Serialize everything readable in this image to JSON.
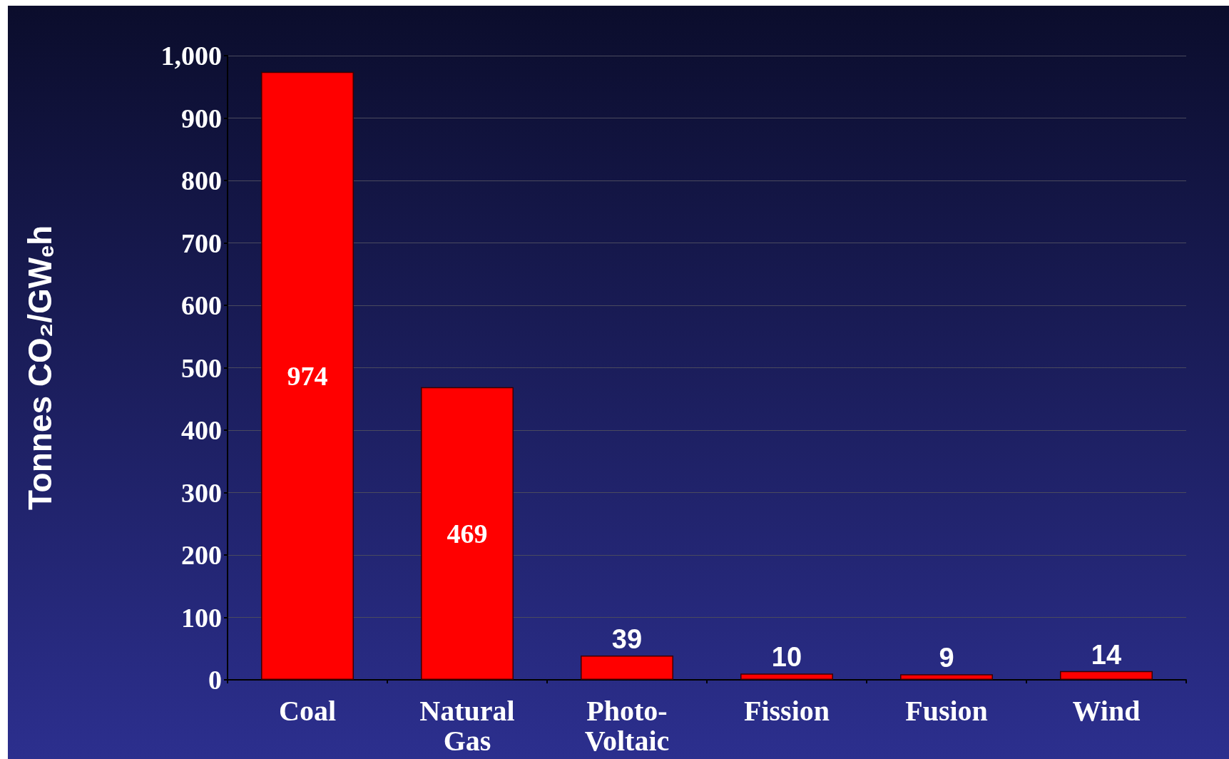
{
  "chart_data": {
    "type": "bar",
    "ylabel": "Tonnes CO₂/GW$_{e}$h",
    "categories": [
      "Coal",
      "Natural Gas",
      "Photo-Voltaic",
      "Fission",
      "Fusion",
      "Wind"
    ],
    "values": [
      974,
      469,
      39,
      10,
      9,
      14
    ],
    "color": "#ff0000",
    "ylim": [
      0,
      1000
    ],
    "yticks": [
      0,
      100,
      200,
      300,
      400,
      500,
      600,
      700,
      800,
      900,
      {
        "value": 1000,
        "label": "1,000"
      }
    ],
    "grid": "y",
    "data_labels": true
  }
}
